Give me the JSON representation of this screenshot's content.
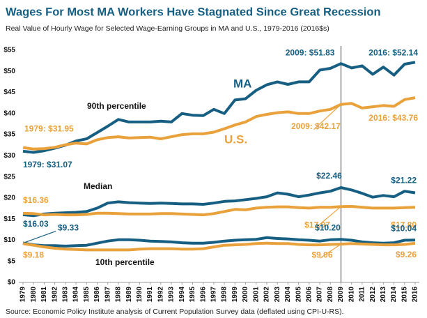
{
  "chart_data": {
    "type": "line",
    "title": "Wages For Most MA Workers Have Stagnated Since Great Recession",
    "subtitle": "Real Value of Hourly Wage for Selected Wage-Earning Groups in MA and U.S., 1979-2016 (2016$s)",
    "source": "Source: Economic Policy Institute analysis of Current Population Survey data (deflated using CPI-U-RS).",
    "x": [
      1979,
      1980,
      1981,
      1982,
      1983,
      1984,
      1985,
      1986,
      1987,
      1988,
      1989,
      1990,
      1991,
      1992,
      1993,
      1994,
      1995,
      1996,
      1997,
      1998,
      1999,
      2000,
      2001,
      2002,
      2003,
      2004,
      2005,
      2006,
      2007,
      2008,
      2009,
      2010,
      2011,
      2012,
      2013,
      2014,
      2015,
      2016
    ],
    "xlim": [
      1979,
      2016
    ],
    "xticks": [
      1979,
      1980,
      1981,
      1982,
      1983,
      1984,
      1985,
      1986,
      1987,
      1988,
      1989,
      1990,
      1991,
      1992,
      1993,
      1994,
      1995,
      1996,
      1997,
      1998,
      1999,
      2000,
      2001,
      2002,
      2003,
      2004,
      2005,
      2006,
      2007,
      2008,
      2009,
      2010,
      2011,
      2012,
      2013,
      2014,
      2015,
      2016
    ],
    "vline": 2009,
    "ylim": [
      0,
      55
    ],
    "yticks": [
      {
        "value": 0,
        "label": "$0"
      },
      {
        "value": 5,
        "label": "$5"
      },
      {
        "value": 10,
        "label": "$10"
      },
      {
        "value": 15,
        "label": "$15"
      },
      {
        "value": 20,
        "label": "$20"
      },
      {
        "value": 25,
        "label": "$25"
      },
      {
        "value": 30,
        "label": "$30"
      },
      {
        "value": 35,
        "label": "$35"
      },
      {
        "value": 40,
        "label": "$40"
      },
      {
        "value": 45,
        "label": "$45"
      },
      {
        "value": 50,
        "label": "$50"
      },
      {
        "value": 55,
        "label": "$55"
      }
    ],
    "grid": false,
    "groups": [
      {
        "label": "90th percentile",
        "series": [
          {
            "name": "MA",
            "color": "#175f82",
            "values": [
              31.07,
              30.8,
              31.2,
              31.8,
              32.5,
              33.5,
              34,
              35.5,
              37,
              38.6,
              38,
              38,
              38,
              38.2,
              38,
              40,
              39.6,
              39.5,
              41,
              40,
              43.2,
              43.5,
              45.5,
              46.8,
              47.5,
              46.9,
              47.5,
              47.5,
              50.3,
              50.7,
              51.83,
              50.8,
              51.3,
              49.3,
              51,
              49.1,
              51.7,
              52.14
            ],
            "value_labels": [
              "1979: $31.07",
              null,
              null,
              null,
              null,
              null,
              null,
              null,
              null,
              null,
              null,
              null,
              null,
              null,
              null,
              null,
              null,
              null,
              null,
              null,
              null,
              null,
              null,
              null,
              null,
              null,
              null,
              null,
              null,
              null,
              "2009: $51.83",
              null,
              null,
              null,
              null,
              null,
              null,
              "2016: $52.14"
            ]
          },
          {
            "name": "U.S.",
            "color": "#e9a23b",
            "values": [
              31.95,
              31.6,
              31.7,
              32,
              32.6,
              33,
              32.8,
              33.8,
              34.3,
              34.5,
              34.2,
              34.3,
              34.4,
              34,
              34.5,
              35,
              35.2,
              35.2,
              35.6,
              36.4,
              37.3,
              38,
              39.3,
              39.8,
              40.2,
              40.4,
              40,
              40,
              40.6,
              41,
              42.17,
              42.4,
              41.3,
              41.6,
              41.9,
              41.7,
              43.3,
              43.76
            ],
            "value_labels": [
              "1979: $31.95",
              null,
              null,
              null,
              null,
              null,
              null,
              null,
              null,
              null,
              null,
              null,
              null,
              null,
              null,
              null,
              null,
              null,
              null,
              null,
              null,
              null,
              null,
              null,
              null,
              null,
              null,
              null,
              null,
              null,
              "2009: $42.17",
              null,
              null,
              null,
              null,
              null,
              null,
              "2016: $43.76"
            ]
          }
        ]
      },
      {
        "label": "Median",
        "series": [
          {
            "color": "#175f82",
            "values": [
              16.03,
              15.8,
              16.2,
              16.4,
              16.5,
              16.6,
              16.8,
              17.6,
              18.8,
              19.1,
              18.9,
              18.8,
              18.7,
              18.8,
              18.7,
              18.6,
              18.6,
              18.5,
              18.8,
              19.2,
              19.3,
              19.6,
              19.9,
              20.3,
              21.2,
              20.9,
              20.3,
              20.7,
              21.2,
              21.6,
              22.46,
              21.9,
              21.1,
              20.2,
              20.6,
              20.3,
              21.6,
              21.22
            ],
            "value_labels": [
              "$16.03",
              null,
              null,
              null,
              null,
              null,
              null,
              null,
              null,
              null,
              null,
              null,
              null,
              null,
              null,
              null,
              null,
              null,
              null,
              null,
              null,
              null,
              null,
              null,
              null,
              null,
              null,
              null,
              null,
              null,
              "$22.46",
              null,
              null,
              null,
              null,
              null,
              null,
              "$21.22"
            ]
          },
          {
            "color": "#e9a23b",
            "values": [
              16.36,
              16.3,
              16,
              16.1,
              16,
              16,
              16.1,
              16.4,
              16.4,
              16.3,
              16.2,
              16.2,
              16.2,
              16.3,
              16.3,
              16.2,
              16.1,
              16,
              16.3,
              16.8,
              17.3,
              17.2,
              17.6,
              17.8,
              17.9,
              17.9,
              17.7,
              17.6,
              17.8,
              17.8,
              17.97,
              18,
              17.8,
              17.6,
              17.6,
              17.6,
              17.7,
              17.8
            ],
            "value_labels": [
              "$16.36",
              null,
              null,
              null,
              null,
              null,
              null,
              null,
              null,
              null,
              null,
              null,
              null,
              null,
              null,
              null,
              null,
              null,
              null,
              null,
              null,
              null,
              null,
              null,
              null,
              null,
              null,
              null,
              null,
              null,
              "$17.97",
              null,
              null,
              null,
              null,
              null,
              null,
              "$17.80"
            ]
          }
        ]
      },
      {
        "label": "10th percentile",
        "series": [
          {
            "color": "#175f82",
            "values": [
              9.33,
              8.9,
              8.7,
              8.7,
              8.6,
              8.7,
              8.8,
              9.3,
              9.8,
              10.1,
              10.1,
              10,
              9.8,
              9.7,
              9.6,
              9.4,
              9.3,
              9.3,
              9.5,
              9.8,
              10,
              10.1,
              10.2,
              10.6,
              10.4,
              10.3,
              10.1,
              10,
              9.8,
              10.1,
              10.2,
              10,
              9.6,
              9.4,
              9.3,
              9.4,
              10,
              10.04
            ],
            "value_labels": [
              "$9.33",
              null,
              null,
              null,
              null,
              null,
              null,
              null,
              null,
              null,
              null,
              null,
              null,
              null,
              null,
              null,
              null,
              null,
              null,
              null,
              null,
              null,
              null,
              null,
              null,
              null,
              null,
              null,
              null,
              null,
              "$10.20",
              null,
              null,
              null,
              null,
              null,
              null,
              "$10.04"
            ]
          },
          {
            "color": "#e9a23b",
            "values": [
              9.18,
              8.8,
              8.4,
              8.1,
              7.9,
              7.8,
              7.7,
              7.7,
              7.7,
              7.7,
              7.7,
              7.9,
              8,
              8,
              8,
              7.9,
              7.9,
              8,
              8.4,
              8.8,
              8.9,
              9,
              9.2,
              9.3,
              9.2,
              9.2,
              9,
              8.9,
              8.9,
              9,
              9.06,
              9.2,
              9.1,
              9,
              8.9,
              8.9,
              9,
              9.26
            ],
            "value_labels": [
              "$9.18",
              null,
              null,
              null,
              null,
              null,
              null,
              null,
              null,
              null,
              null,
              null,
              null,
              null,
              null,
              null,
              null,
              null,
              null,
              null,
              null,
              null,
              null,
              null,
              null,
              null,
              null,
              null,
              null,
              null,
              "$9.06",
              null,
              null,
              null,
              null,
              null,
              null,
              "$9.26"
            ]
          }
        ]
      }
    ]
  }
}
